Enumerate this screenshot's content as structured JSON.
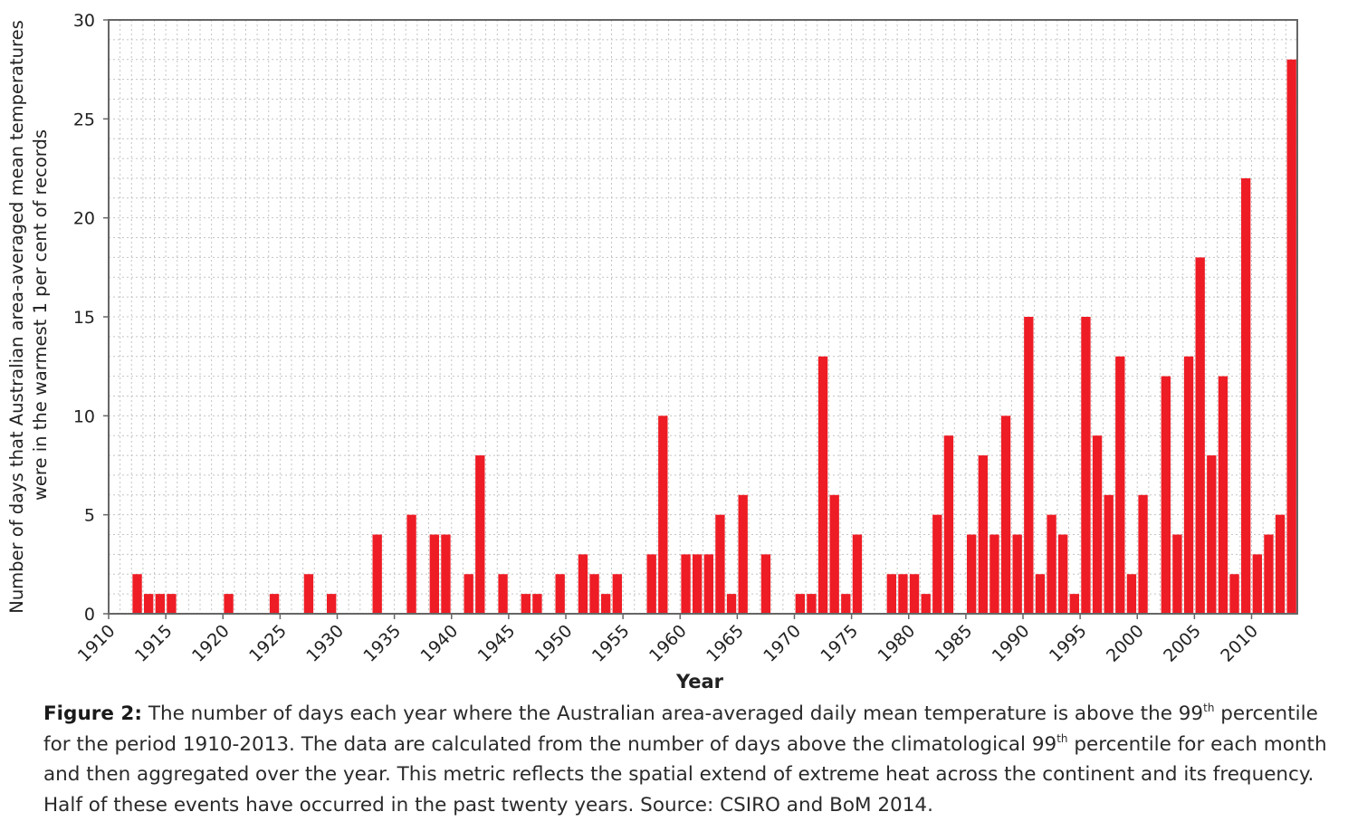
{
  "chart_data": {
    "type": "bar",
    "xlabel": "Year",
    "ylabel_line1": "Number of days that Australian area-averaged mean temperatures",
    "ylabel_line2": "were in the warmest 1 per cent of records",
    "ylim": [
      0,
      30
    ],
    "yticks": [
      "0",
      "5",
      "10",
      "15",
      "20",
      "25",
      "30"
    ],
    "xticks": [
      "1910",
      "1915",
      "1920",
      "1925",
      "1930",
      "1935",
      "1940",
      "1945",
      "1950",
      "1955",
      "1960",
      "1965",
      "1970",
      "1975",
      "1980",
      "1985",
      "1990",
      "1995",
      "2000",
      "2005",
      "2010"
    ],
    "grid": true,
    "bar_color": "#ee1c25",
    "years": [
      1910,
      1911,
      1912,
      1913,
      1914,
      1915,
      1916,
      1917,
      1918,
      1919,
      1920,
      1921,
      1922,
      1923,
      1924,
      1925,
      1926,
      1927,
      1928,
      1929,
      1930,
      1931,
      1932,
      1933,
      1934,
      1935,
      1936,
      1937,
      1938,
      1939,
      1940,
      1941,
      1942,
      1943,
      1944,
      1945,
      1946,
      1947,
      1948,
      1949,
      1950,
      1951,
      1952,
      1953,
      1954,
      1955,
      1956,
      1957,
      1958,
      1959,
      1960,
      1961,
      1962,
      1963,
      1964,
      1965,
      1966,
      1967,
      1968,
      1969,
      1970,
      1971,
      1972,
      1973,
      1974,
      1975,
      1976,
      1977,
      1978,
      1979,
      1980,
      1981,
      1982,
      1983,
      1984,
      1985,
      1986,
      1987,
      1988,
      1989,
      1990,
      1991,
      1992,
      1993,
      1994,
      1995,
      1996,
      1997,
      1998,
      1999,
      2000,
      2001,
      2002,
      2003,
      2004,
      2005,
      2006,
      2007,
      2008,
      2009,
      2010,
      2011,
      2012,
      2013
    ],
    "values": [
      0,
      0,
      2,
      1,
      1,
      1,
      0,
      0,
      0,
      0,
      1,
      0,
      0,
      0,
      1,
      0,
      0,
      2,
      0,
      1,
      0,
      0,
      0,
      4,
      0,
      0,
      5,
      0,
      4,
      4,
      0,
      2,
      8,
      0,
      2,
      0,
      1,
      1,
      0,
      2,
      0,
      3,
      2,
      1,
      2,
      0,
      0,
      3,
      10,
      0,
      3,
      3,
      3,
      5,
      1,
      6,
      0,
      3,
      0,
      0,
      1,
      1,
      13,
      6,
      1,
      4,
      0,
      0,
      2,
      2,
      2,
      1,
      5,
      9,
      0,
      4,
      8,
      4,
      10,
      4,
      15,
      2,
      5,
      4,
      1,
      15,
      9,
      6,
      13,
      2,
      6,
      0,
      12,
      4,
      13,
      18,
      8,
      12,
      2,
      22,
      3,
      4,
      5,
      28
    ]
  },
  "caption": {
    "label": "Figure 2:",
    "text_1": " The number of days each year where the Australian area-averaged daily mean temperature is above the 99",
    "sup_1": "th",
    "text_2": " percentile for the period 1910-2013. The data are calculated from the number of days above the climatological 99",
    "sup_2": "th",
    "text_3": " percentile for each month and then aggregated over the year. This metric reflects the spatial extend of extreme heat across the continent and its frequency. Half of these events have occurred in the past twenty years. Source: CSIRO and BoM 2014."
  }
}
